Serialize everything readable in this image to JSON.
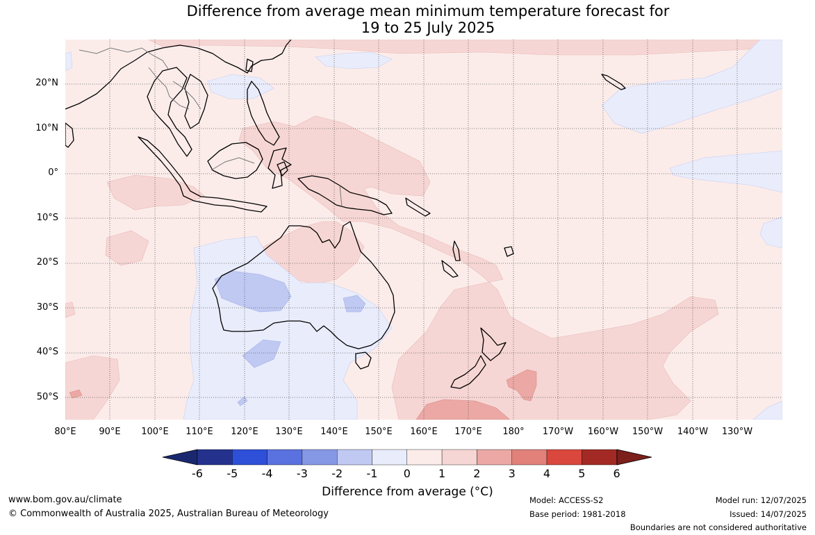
{
  "header": {
    "title_line1": "Difference from average mean minimum temperature forecast for",
    "title_line2": "19 to 25 July 2025"
  },
  "map": {
    "lat_labels": [
      "20°N",
      "10°N",
      "0°",
      "10°S",
      "20°S",
      "30°S",
      "40°S",
      "50°S"
    ],
    "lon_labels": [
      "80°E",
      "90°E",
      "100°E",
      "110°E",
      "120°E",
      "130°E",
      "140°E",
      "150°E",
      "160°E",
      "170°E",
      "180°",
      "170°W",
      "160°W",
      "150°W",
      "140°W",
      "130°W"
    ],
    "lon_range": [
      "80°E",
      "-120°W"
    ],
    "lat_range": [
      -55,
      30
    ]
  },
  "legend": {
    "tick_labels": [
      "-6",
      "-5",
      "-4",
      "-3",
      "-2",
      "-1",
      "0",
      "1",
      "2",
      "3",
      "4",
      "5",
      "6"
    ],
    "colors": [
      "#24328e",
      "#2e4fd8",
      "#5a72df",
      "#8598e6",
      "#c0c9f2",
      "#e9ecfb",
      "#fbecea",
      "#f6d6d4",
      "#eba8a4",
      "#e2807a",
      "#d9473d",
      "#a32a24"
    ],
    "low_extend_color": "#1a2870",
    "high_extend_color": "#7d1f1a",
    "title": "Difference from average (°C)"
  },
  "footer": {
    "website": "www.bom.gov.au/climate",
    "copyright": "© Commonwealth of Australia 2025, Australian Bureau of Meteorology",
    "model": "Model: ACCESS-S2",
    "base_period": "Base period: 1981-2018",
    "model_run": "Model run: 12/07/2025",
    "issued": "Issued: 14/07/2025",
    "disclaimer": "Boundaries are not considered authoritative"
  }
}
